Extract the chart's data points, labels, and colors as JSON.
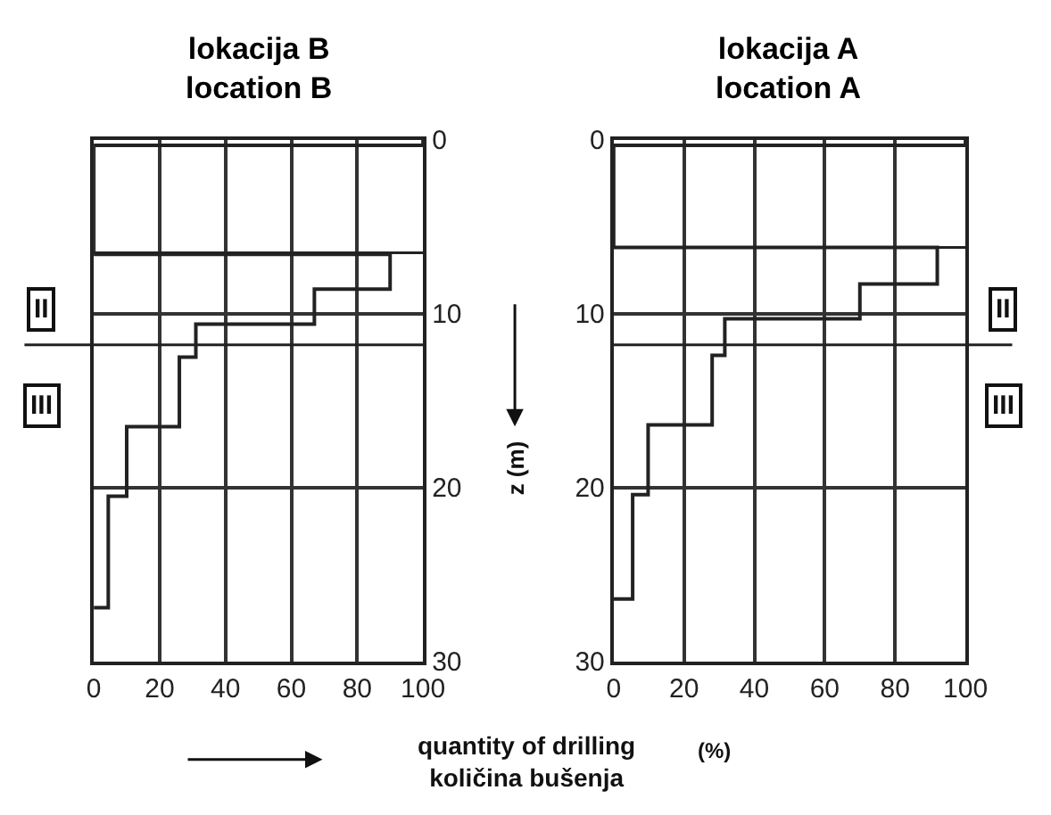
{
  "chart_data": [
    {
      "type": "step",
      "orientation": "horizontal",
      "title": "lokacija B\nlocation B",
      "xlabel": "quantity of drilling\nkoličina bušenja",
      "annotations": [
        "(%)",
        "II",
        "III"
      ],
      "x": [
        0,
        0.33,
        6.6,
        8.6,
        10.6,
        12.5,
        16.5,
        20.5,
        26.9
      ],
      "values": [
        100,
        0,
        90,
        67,
        31,
        26,
        10,
        4.4,
        0
      ],
      "color": "#222222",
      "xlim": [
        0,
        100
      ],
      "xticks": [
        0,
        20,
        40,
        60,
        80,
        100
      ],
      "ylim": [
        30,
        0
      ],
      "yticks": [
        0,
        10,
        20,
        30
      ],
      "ref_lines": [
        {
          "axis": "y",
          "value": 6.5
        },
        {
          "axis": "y",
          "value": 11.8
        }
      ],
      "grid": true
    },
    {
      "type": "step",
      "orientation": "horizontal",
      "title": "lokacija A\nlocation A",
      "ylabel": "z (m)",
      "annotations": [
        "II",
        "III"
      ],
      "x": [
        0,
        0.33,
        6.2,
        8.3,
        10.3,
        12.4,
        16.4,
        20.4,
        26.4
      ],
      "values": [
        100,
        0,
        92,
        70,
        31.6,
        28,
        9.8,
        5.4,
        0
      ],
      "color": "#222222",
      "xlim": [
        0,
        100
      ],
      "xticks": [
        0,
        20,
        40,
        60,
        80,
        100
      ],
      "ylim": [
        30,
        0
      ],
      "yticks": [
        0,
        10,
        20,
        30
      ],
      "ref_lines": [
        {
          "axis": "y",
          "value": 6.2
        },
        {
          "axis": "y",
          "value": 11.8
        }
      ],
      "grid": true
    }
  ]
}
